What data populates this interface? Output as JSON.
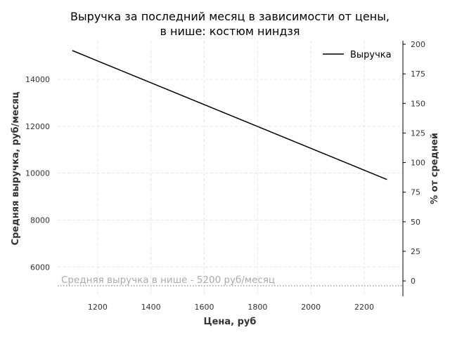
{
  "chart_data": {
    "type": "line",
    "title": "Выручка за последний месяц в зависимости от цены,",
    "subtitle": "в нише: костюм ниндзя",
    "xlabel": "Цена, руб",
    "ylabel": "Средняя выручка, руб/месяц",
    "ylabel_right": "% от средней",
    "xlim": [
      1050,
      2345
    ],
    "ylim": [
      4750,
      15650
    ],
    "ylim_right": [
      -13,
      203
    ],
    "x_ticks": [
      1200,
      1400,
      1600,
      1800,
      2000,
      2200
    ],
    "y_ticks": [
      6000,
      8000,
      10000,
      12000,
      14000
    ],
    "y_ticks_right": [
      0,
      25,
      50,
      75,
      100,
      125,
      150,
      175,
      200
    ],
    "grid": true,
    "legend_position": "top-right",
    "series": [
      {
        "name": "Выручка",
        "color": "#000000",
        "x": [
          1105,
          2285
        ],
        "y": [
          15230,
          9730
        ]
      }
    ],
    "reference_line": {
      "value": 5200,
      "color": "#aaaaaa",
      "label": "Средняя выручка в нише - 5200 руб/месяц"
    }
  }
}
